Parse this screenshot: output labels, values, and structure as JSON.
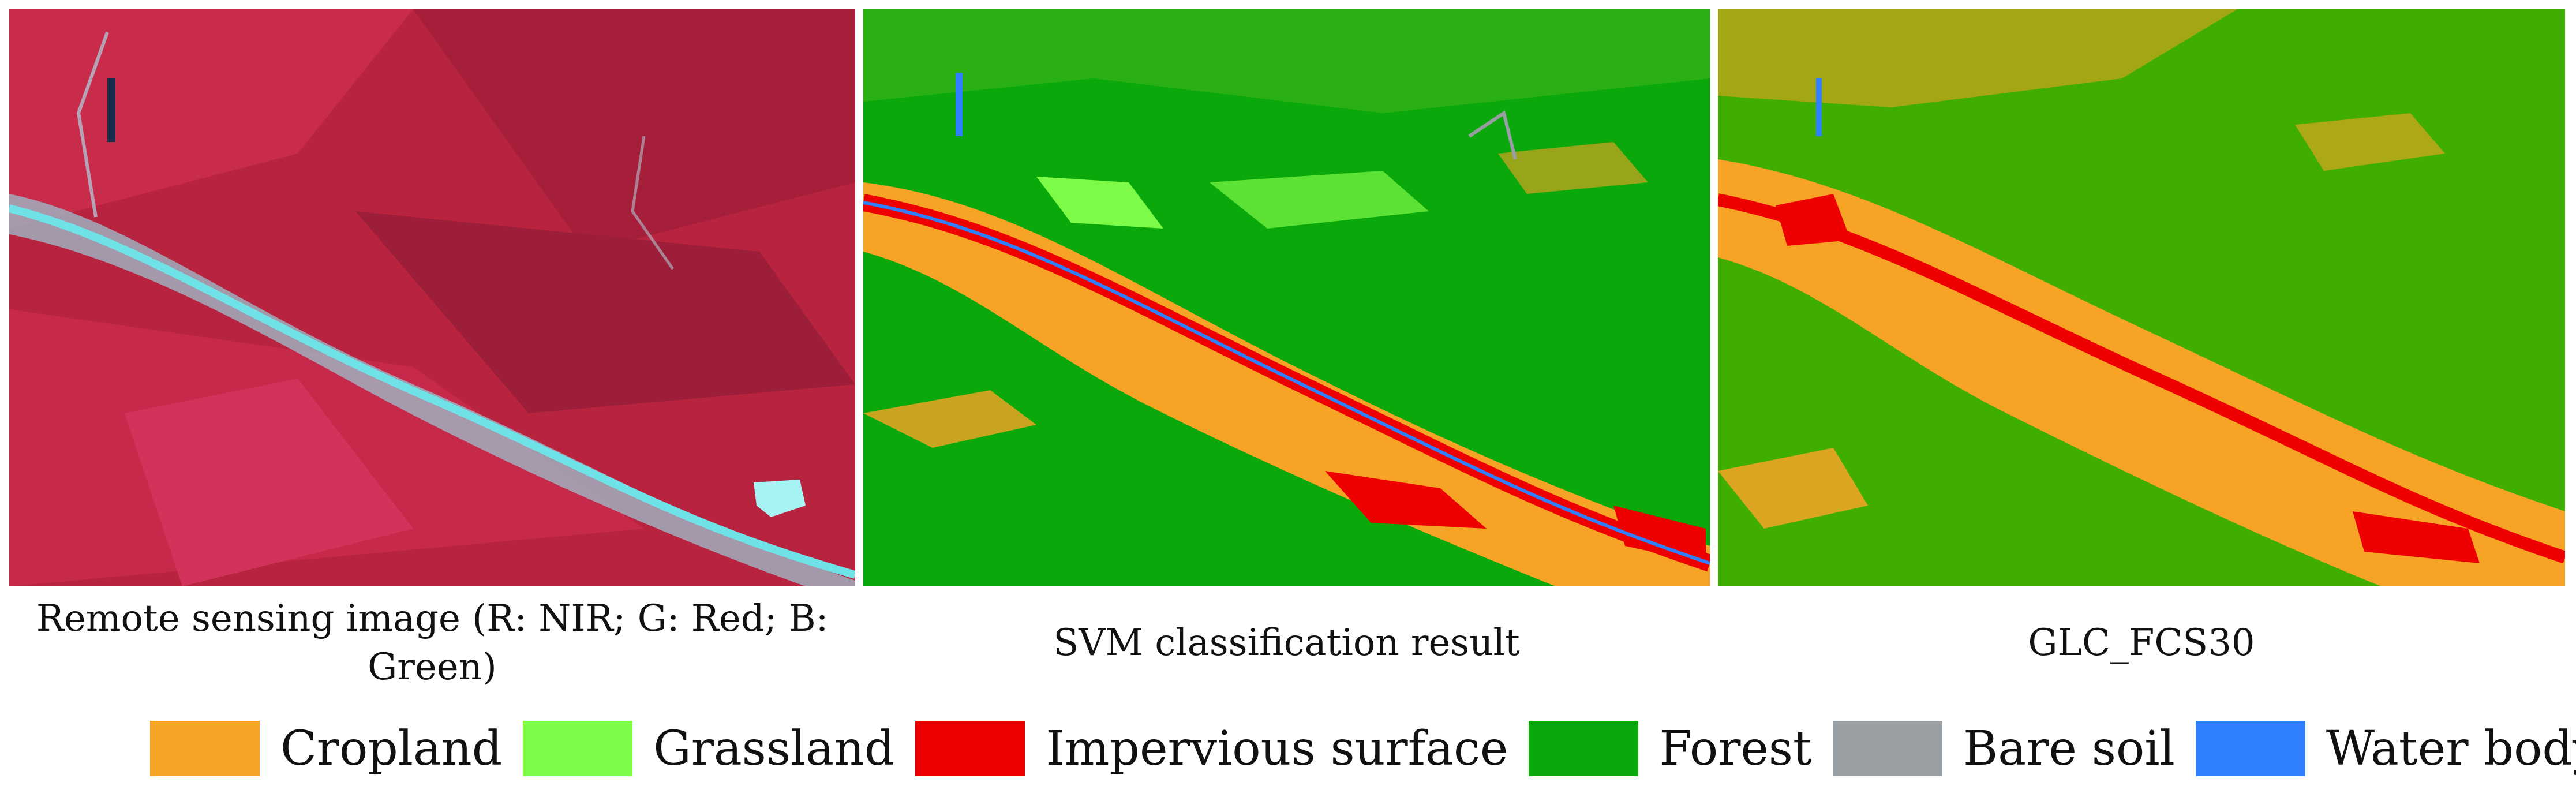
{
  "panels": [
    {
      "caption": "Remote sensing image (R: NIR; G: Red; B: Green)"
    },
    {
      "caption": "SVM classification result"
    },
    {
      "caption": "GLC_FCS30"
    }
  ],
  "legend": [
    {
      "label": "Cropland",
      "color": "#f7a325"
    },
    {
      "label": "Grassland",
      "color": "#7dfb47"
    },
    {
      "label": "Impervious surface",
      "color": "#ee0000"
    },
    {
      "label": "Forest",
      "color": "#0aa80a"
    },
    {
      "label": "Bare soil",
      "color": "#999ea3"
    },
    {
      "label": "Water body",
      "color": "#2f7fff"
    }
  ]
}
